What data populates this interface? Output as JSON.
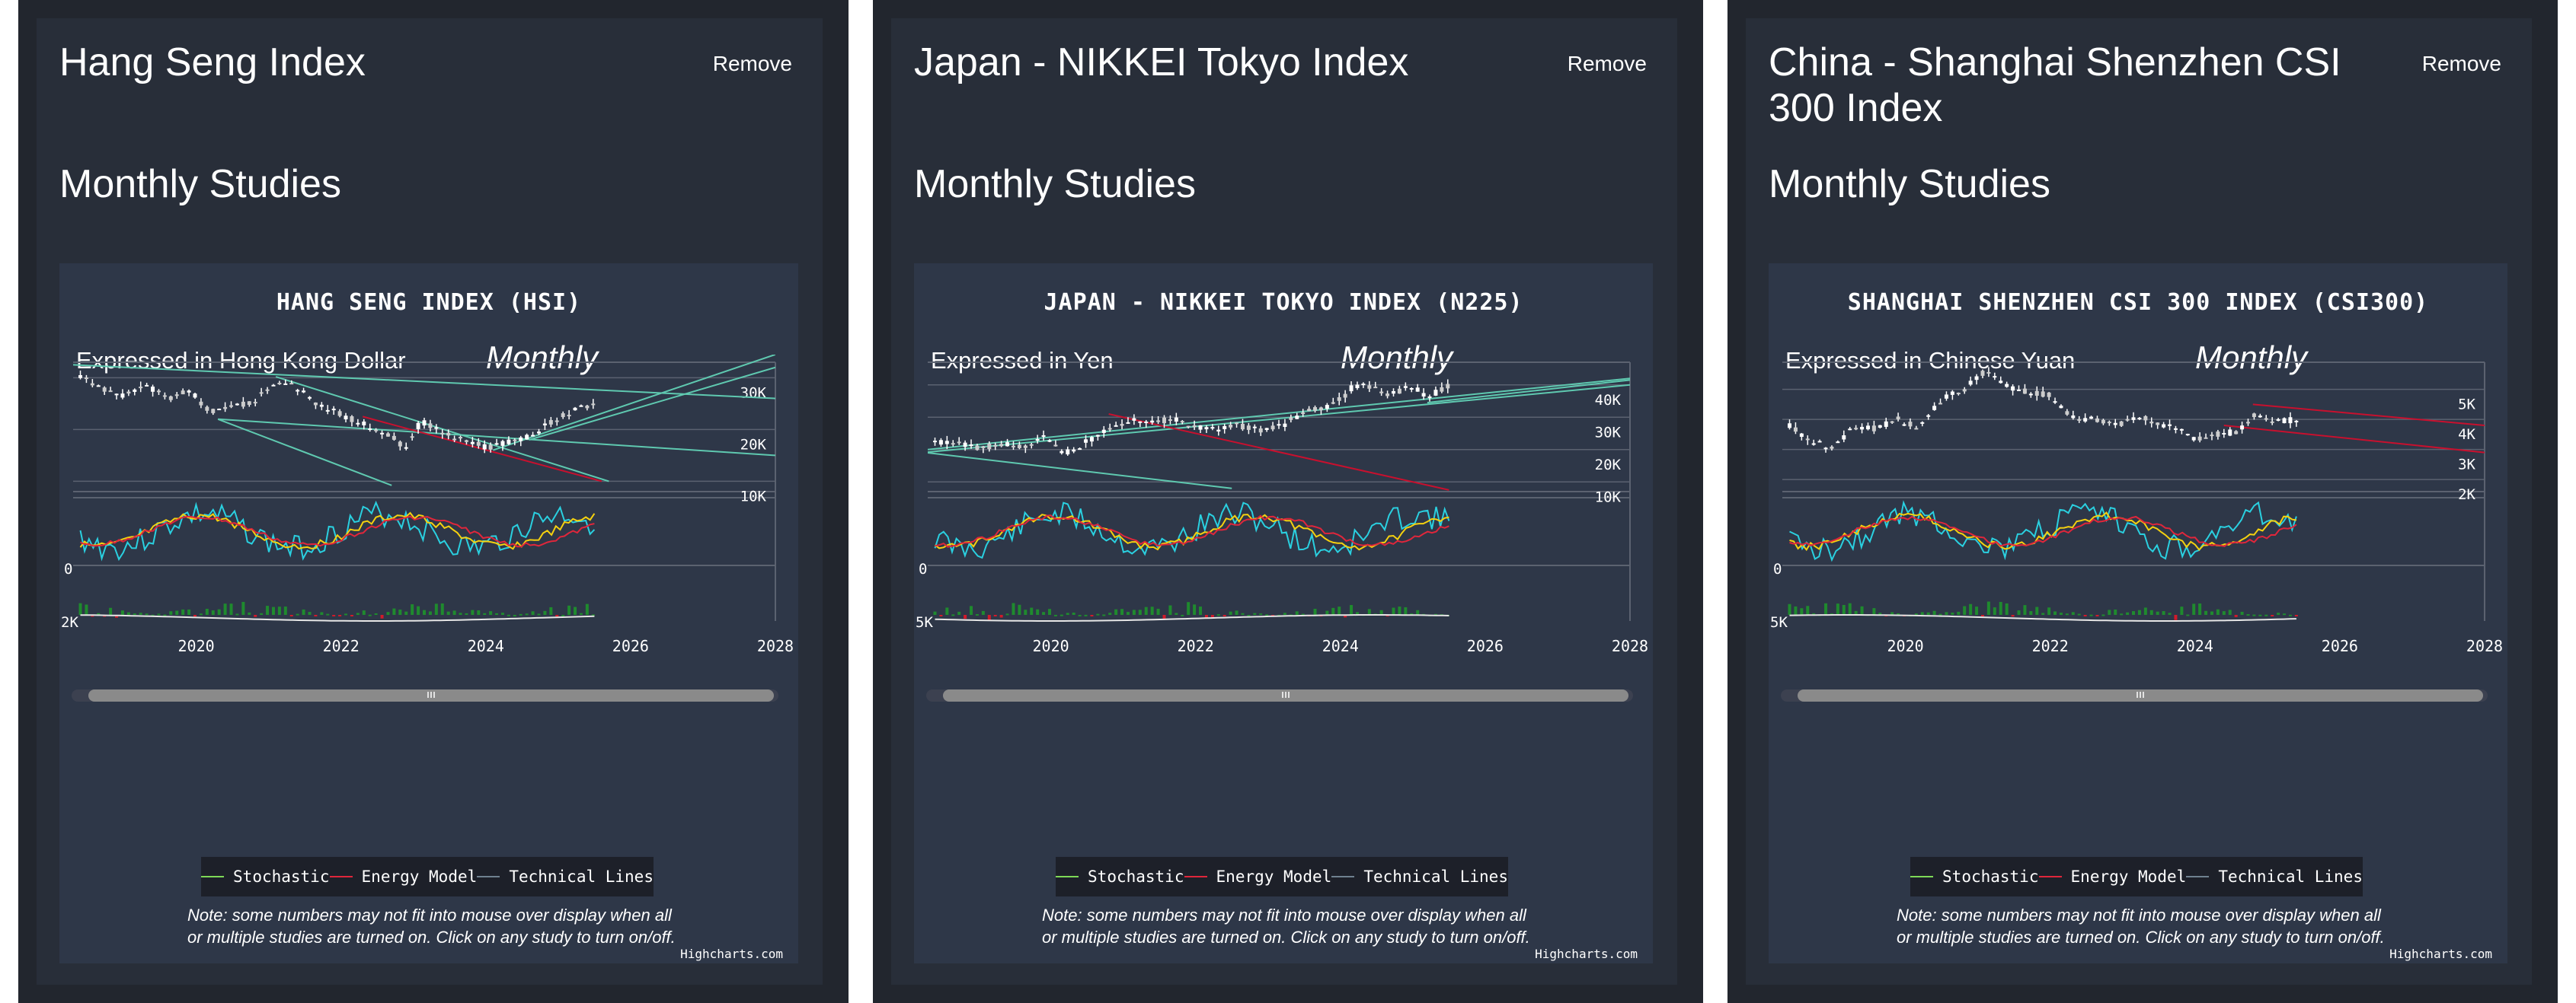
{
  "remove_label": "Remove",
  "studies_label": "Monthly Studies",
  "period_label": "Monthly",
  "legend": [
    {
      "label": "Stochastic",
      "color": "#7ed957"
    },
    {
      "label": "Energy Model",
      "color": "#e0263b"
    },
    {
      "label": "Technical Lines",
      "color": "#6f8190"
    }
  ],
  "note": "Note: some numbers may not fit into mouse over display when all or multiple studies are turned on. Click on any study to turn on/off.",
  "credit": "Highcharts.com",
  "panels": [
    {
      "heading": "Hang Seng Index",
      "chart_title": "HANG SENG INDEX (HSI)",
      "expressed": "Expressed in Hong Kong Dollar"
    },
    {
      "heading": "Japan - NIKKEI Tokyo Index",
      "chart_title": "JAPAN - NIKKEI TOKYO INDEX (N225)",
      "expressed": "Expressed in Yen"
    },
    {
      "heading": "China - Shanghai Shenzhen CSI 300 Index",
      "chart_title": "SHANGHAI SHENZHEN CSI 300 INDEX (CSI300)",
      "expressed": "Expressed in Chinese Yuan"
    }
  ],
  "chart_data": [
    {
      "type": "line",
      "title": "HANG SENG INDEX (HSI)",
      "xlabel": "",
      "ylabel": "",
      "x_ticks": [
        "2020",
        "2022",
        "2024",
        "2026",
        "2028"
      ],
      "xlim": [
        2018.3,
        2028
      ],
      "ylim": [
        8000,
        33000
      ],
      "y_ticks": [
        {
          "v": 10000,
          "label": "10K"
        },
        {
          "v": 20000,
          "label": "20K"
        },
        {
          "v": 30000,
          "label": "30K"
        }
      ],
      "stoch_label": "0",
      "energy_label": "2K",
      "series": [
        {
          "points": [
            [
              2018.4,
              30500
            ],
            [
              2018.7,
              28000
            ],
            [
              2019.0,
              26500
            ],
            [
              2019.3,
              28500
            ],
            [
              2019.6,
              26000
            ],
            [
              2019.9,
              27500
            ],
            [
              2020.2,
              23500
            ],
            [
              2020.5,
              24500
            ],
            [
              2020.8,
              25500
            ],
            [
              2021.1,
              29500
            ],
            [
              2021.4,
              28000
            ],
            [
              2021.7,
              24500
            ],
            [
              2022.0,
              23000
            ],
            [
              2022.3,
              21000
            ],
            [
              2022.6,
              19500
            ],
            [
              2022.9,
              16500
            ],
            [
              2023.1,
              21500
            ],
            [
              2023.4,
              19500
            ],
            [
              2023.7,
              18000
            ],
            [
              2024.0,
              16500
            ],
            [
              2024.3,
              17500
            ],
            [
              2024.6,
              18500
            ],
            [
              2024.9,
              21500
            ],
            [
              2025.2,
              23500
            ],
            [
              2025.5,
              25000
            ]
          ]
        }
      ],
      "technical_lines": [
        [
          [
            2018.3,
            32500
          ],
          [
            2028,
            26000
          ]
        ],
        [
          [
            2020.3,
            22000
          ],
          [
            2028,
            15000
          ]
        ],
        [
          [
            2021.1,
            30200
          ],
          [
            2025.7,
            10000
          ]
        ],
        [
          [
            2020.3,
            22000
          ],
          [
            2022.7,
            9200
          ]
        ],
        [
          [
            2024.1,
            16000
          ],
          [
            2028,
            34500
          ]
        ],
        [
          [
            2024.6,
            18000
          ],
          [
            2028,
            32000
          ]
        ]
      ],
      "energy_lines": [
        [
          [
            2022.3,
            22500
          ],
          [
            2025.6,
            10000
          ]
        ]
      ],
      "stochastic_seed": 3,
      "energy_seed": 5
    },
    {
      "type": "line",
      "title": "JAPAN - NIKKEI TOKYO INDEX (N225)",
      "xlabel": "",
      "ylabel": "",
      "x_ticks": [
        "2020",
        "2022",
        "2024",
        "2026",
        "2028"
      ],
      "xlim": [
        2018.3,
        2028
      ],
      "ylim": [
        7000,
        47000
      ],
      "y_ticks": [
        {
          "v": 10000,
          "label": "10K"
        },
        {
          "v": 20000,
          "label": "20K"
        },
        {
          "v": 30000,
          "label": "30K"
        },
        {
          "v": 40000,
          "label": "40K"
        }
      ],
      "stoch_label": "0",
      "energy_label": "5K",
      "series": [
        {
          "points": [
            [
              2018.4,
              22000
            ],
            [
              2018.7,
              22500
            ],
            [
              2019.0,
              20500
            ],
            [
              2019.3,
              21500
            ],
            [
              2019.6,
              21000
            ],
            [
              2019.9,
              23500
            ],
            [
              2020.2,
              19000
            ],
            [
              2020.5,
              22500
            ],
            [
              2020.8,
              26500
            ],
            [
              2021.1,
              29500
            ],
            [
              2021.4,
              28500
            ],
            [
              2021.7,
              29500
            ],
            [
              2022.0,
              27000
            ],
            [
              2022.3,
              26500
            ],
            [
              2022.6,
              27500
            ],
            [
              2022.9,
              26000
            ],
            [
              2023.2,
              27500
            ],
            [
              2023.5,
              31500
            ],
            [
              2023.8,
              33000
            ],
            [
              2024.0,
              35500
            ],
            [
              2024.2,
              40000
            ],
            [
              2024.5,
              39000
            ],
            [
              2024.7,
              37000
            ],
            [
              2025.0,
              39500
            ],
            [
              2025.2,
              36000
            ],
            [
              2025.5,
              40000
            ]
          ]
        }
      ],
      "technical_lines": [
        [
          [
            2018.3,
            20000
          ],
          [
            2028,
            42000
          ]
        ],
        [
          [
            2018.3,
            19200
          ],
          [
            2028,
            40000
          ]
        ],
        [
          [
            2018.3,
            19000
          ],
          [
            2022.5,
            8000
          ]
        ],
        [
          [
            2025.2,
            34500
          ],
          [
            2028,
            41500
          ]
        ]
      ],
      "energy_lines": [
        [
          [
            2020.8,
            31000
          ],
          [
            2025.5,
            7500
          ]
        ]
      ],
      "stochastic_seed": 11,
      "energy_seed": 13
    },
    {
      "type": "line",
      "title": "SHANGHAI SHENZHEN CSI 300 INDEX (CSI300)",
      "xlabel": "",
      "ylabel": "",
      "x_ticks": [
        "2020",
        "2022",
        "2024",
        "2026",
        "2028"
      ],
      "xlim": [
        2018.3,
        2028
      ],
      "ylim": [
        1600,
        5900
      ],
      "y_ticks": [
        {
          "v": 2000,
          "label": "2K"
        },
        {
          "v": 3000,
          "label": "3K"
        },
        {
          "v": 4000,
          "label": "4K"
        },
        {
          "v": 5000,
          "label": "5K"
        }
      ],
      "stoch_label": "0",
      "energy_label": "5K",
      "series": [
        {
          "points": [
            [
              2018.4,
              3800
            ],
            [
              2018.7,
              3300
            ],
            [
              2019.0,
              3000
            ],
            [
              2019.3,
              3800
            ],
            [
              2019.6,
              3700
            ],
            [
              2019.9,
              4000
            ],
            [
              2020.2,
              3700
            ],
            [
              2020.5,
              4700
            ],
            [
              2020.8,
              5000
            ],
            [
              2021.1,
              5600
            ],
            [
              2021.4,
              5100
            ],
            [
              2021.7,
              4900
            ],
            [
              2022.0,
              4800
            ],
            [
              2022.3,
              4100
            ],
            [
              2022.6,
              4000
            ],
            [
              2022.9,
              3800
            ],
            [
              2023.2,
              4100
            ],
            [
              2023.5,
              3900
            ],
            [
              2023.8,
              3600
            ],
            [
              2024.0,
              3300
            ],
            [
              2024.3,
              3500
            ],
            [
              2024.6,
              3600
            ],
            [
              2024.8,
              4200
            ],
            [
              2025.1,
              3900
            ],
            [
              2025.4,
              4000
            ]
          ]
        }
      ],
      "technical_lines": [],
      "energy_lines": [
        [
          [
            2024.8,
            4500
          ],
          [
            2028,
            3800
          ]
        ],
        [
          [
            2024.4,
            3800
          ],
          [
            2028,
            2900
          ]
        ]
      ],
      "stochastic_seed": 21,
      "energy_seed": 23
    }
  ]
}
